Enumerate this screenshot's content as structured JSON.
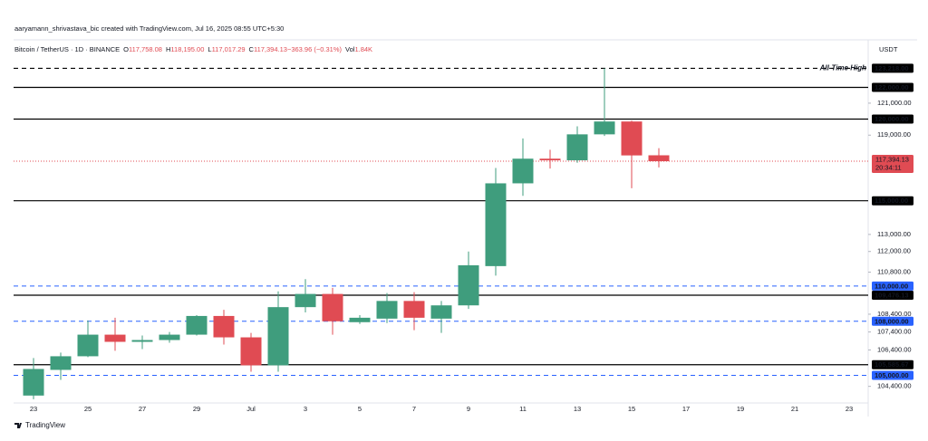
{
  "watermark": "aaryamann_shrivastava_bic created with TradingView.com, Jul 16, 2025 08:55 UTC+5:30",
  "chart_data": {
    "type": "candlestick",
    "symbol": "Bitcoin / TetherUS · 1D · BINANCE",
    "legend": [
      {
        "key": "O",
        "value": "117,758.08"
      },
      {
        "key": "H",
        "value": "118,195.00"
      },
      {
        "key": "L",
        "value": "117,017.29"
      },
      {
        "key": "C",
        "value": "117,394.13"
      },
      {
        "key": "",
        "value": "−363.96 (−0.31%)"
      },
      {
        "key": "Vol",
        "value": "1.84K"
      }
    ],
    "currency": "USDT",
    "categories": [
      "23",
      null,
      "25",
      null,
      "27",
      null,
      "29",
      null,
      "Jul",
      null,
      "3",
      null,
      "5",
      null,
      "7",
      null,
      "9",
      null,
      "11",
      null,
      "13",
      null,
      "15",
      null,
      "17",
      null,
      "19",
      null,
      "21",
      null,
      "23"
    ],
    "open": [
      103900,
      105300,
      106050,
      107250,
      106850,
      106950,
      107250,
      108300,
      107100,
      105550,
      108800,
      109550,
      107950,
      108150,
      109150,
      108150,
      108900,
      111150,
      116050,
      117550,
      117450,
      119050,
      119850,
      117758.08,
      null,
      null,
      null,
      null,
      null,
      null,
      null
    ],
    "high": [
      105950,
      106250,
      108050,
      108200,
      107200,
      107400,
      108350,
      108650,
      107350,
      109700,
      110400,
      109900,
      108350,
      109600,
      109650,
      109150,
      112000,
      116980,
      118800,
      118100,
      119550,
      123218,
      119900,
      118195,
      null,
      null,
      null,
      null,
      null,
      null,
      null
    ],
    "low": [
      103700,
      104750,
      106000,
      106350,
      106450,
      106800,
      107200,
      106700,
      105200,
      105200,
      108500,
      107250,
      107850,
      107900,
      107500,
      107350,
      108700,
      110600,
      115300,
      116950,
      117300,
      118950,
      115750,
      117017.29,
      null,
      null,
      null,
      null,
      null,
      null,
      null
    ],
    "close": [
      105350,
      106050,
      107250,
      106850,
      106950,
      107250,
      108300,
      107100,
      105550,
      108800,
      109550,
      108000,
      108200,
      109150,
      108200,
      108900,
      111200,
      116050,
      117550,
      117450,
      119050,
      119850,
      117750,
      117394.13,
      null,
      null,
      null,
      null,
      null,
      null,
      null
    ],
    "up_color": "#3f9d7d",
    "down_color": "#e04b53",
    "ylim": [
      103500,
      125000
    ],
    "log_scale": true,
    "yticks": [
      {
        "value": 121000,
        "label": "121,000.00"
      },
      {
        "value": 119000,
        "label": "119,000.00"
      },
      {
        "value": 113000,
        "label": "113,000.00"
      },
      {
        "value": 112000,
        "label": "112,000.00"
      },
      {
        "value": 110800,
        "label": "110,800.00"
      },
      {
        "value": 108400,
        "label": "108,400.00"
      },
      {
        "value": 107400,
        "label": "107,400.00"
      },
      {
        "value": 106400,
        "label": "106,400.00"
      },
      {
        "value": 104400,
        "label": "104,400.00"
      }
    ],
    "levels": [
      {
        "value": 123218,
        "label": "123,218.00",
        "color": "#000000",
        "style": "dashed",
        "note": "All-Time High"
      },
      {
        "value": 122000,
        "label": "122,000.00",
        "color": "#000000",
        "style": "solid"
      },
      {
        "value": 120000,
        "label": "120,000.00",
        "color": "#000000",
        "style": "solid"
      },
      {
        "value": 115000,
        "label": "115,000.00",
        "color": "#000000",
        "style": "solid"
      },
      {
        "value": 110000,
        "label": "110,000.00",
        "color": "#2962ff",
        "style": "dashed"
      },
      {
        "value": 109476.13,
        "label": "109,476.13",
        "color": "#000000",
        "style": "solid"
      },
      {
        "value": 108000,
        "label": "108,000.00",
        "color": "#2962ff",
        "style": "dashed"
      },
      {
        "value": 105585.67,
        "label": "105,585.67",
        "color": "#000000",
        "style": "solid"
      },
      {
        "value": 105000,
        "label": "105,000.00",
        "color": "#2962ff",
        "style": "dashed"
      }
    ],
    "last_price": {
      "value": 117394.13,
      "label": "117,394.13",
      "countdown": "20:34:11",
      "color": "#e04b53"
    }
  },
  "footer": {
    "logo": "TradingView"
  }
}
